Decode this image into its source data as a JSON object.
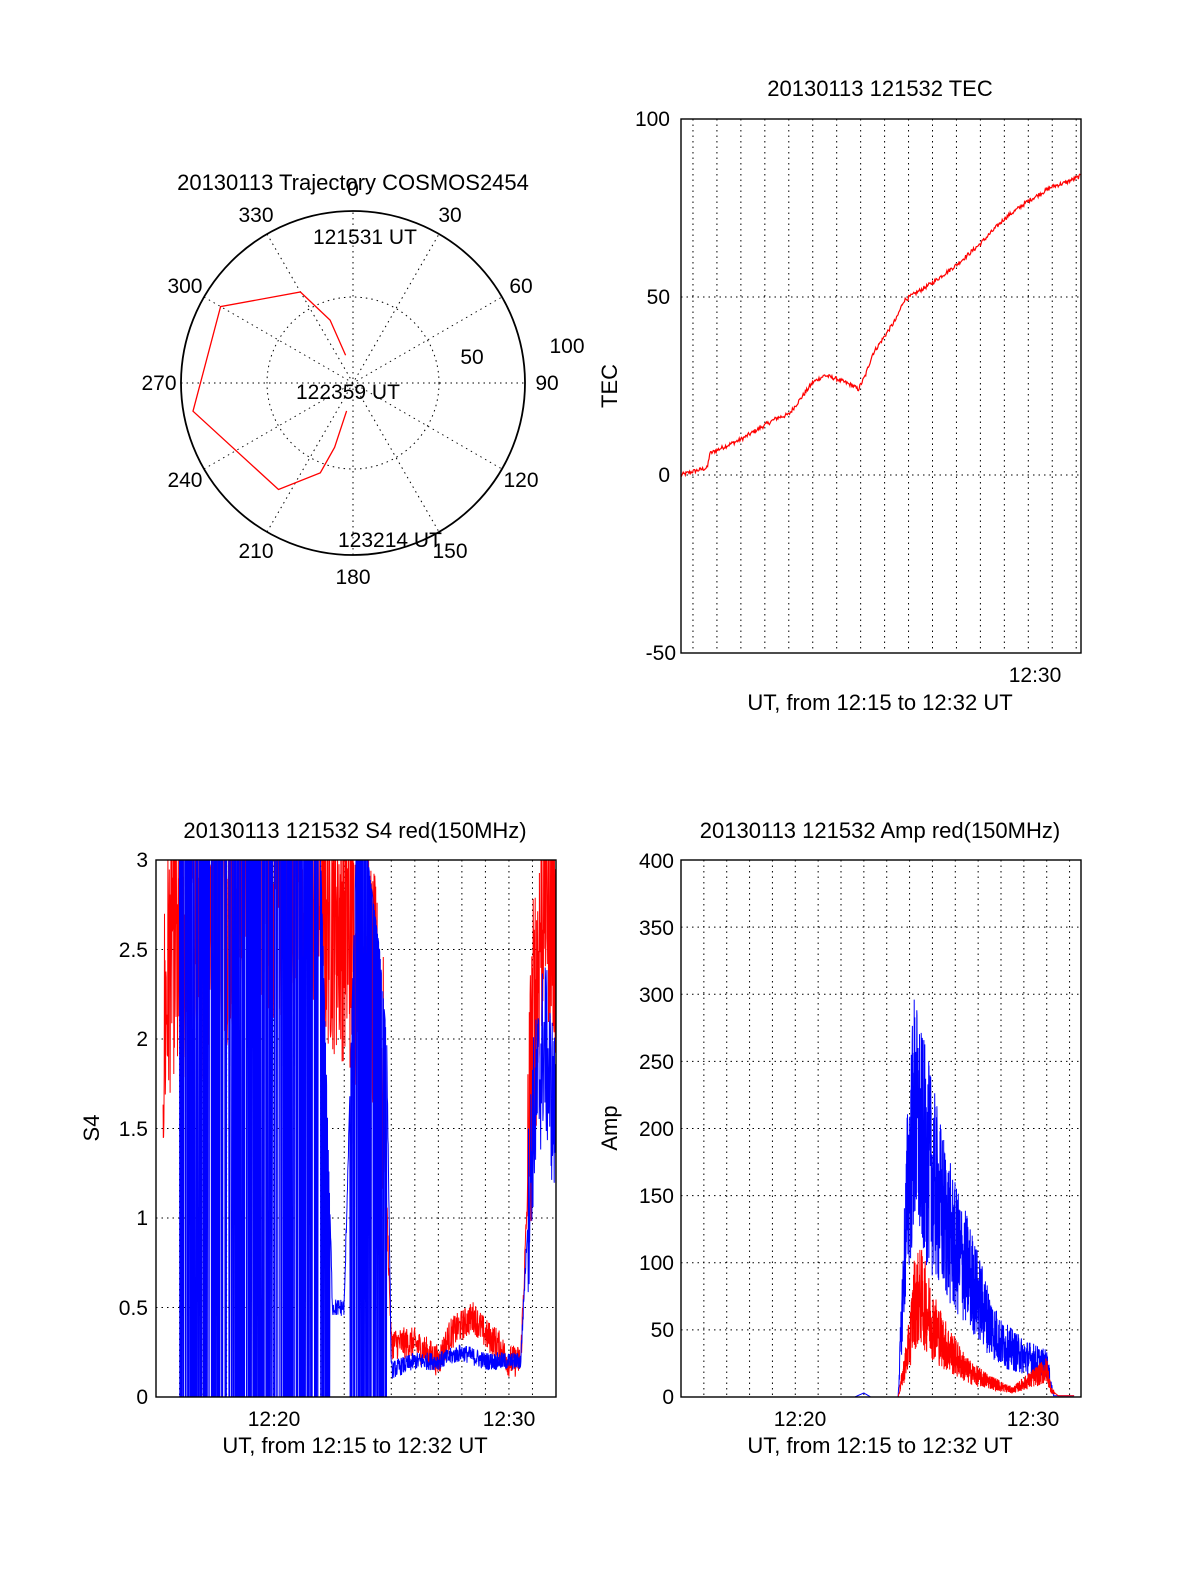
{
  "chart_data": [
    {
      "type": "polar",
      "title": "20130113 Trajectory COSMOS2454",
      "azimuth_labels": [
        "0",
        "30",
        "60",
        "90",
        "120",
        "150",
        "180",
        "210",
        "240",
        "270",
        "300",
        "330"
      ],
      "radial_labels": [
        "50",
        "100"
      ],
      "series": [
        {
          "color": "#ff0000",
          "points_az_el": [
            [
              345,
              75
            ],
            [
              340,
              55
            ],
            [
              330,
              35
            ],
            [
              300,
              10
            ],
            [
              260,
              5
            ],
            [
              215,
              22
            ],
            [
              200,
              40
            ],
            [
              196,
              55
            ],
            [
              193,
              75
            ]
          ]
        }
      ],
      "annotations": [
        "121531 UT",
        "122359 UT",
        "123214 UT"
      ],
      "grid": true
    },
    {
      "type": "line",
      "title": "20130113 121532 TEC",
      "xlabel": "UT, from 12:15 to 12:32 UT",
      "ylabel": "TEC",
      "x_ticks": [
        "12:30"
      ],
      "y_ticks": [
        "100",
        "50",
        "0",
        "-50"
      ],
      "xlim_minutes": [
        15.5,
        32.2
      ],
      "ylim": [
        -50,
        100
      ],
      "grid": true,
      "series": [
        {
          "color": "#ff0000",
          "x_minutes": [
            15.5,
            16.0,
            16.6,
            16.7,
            17.0,
            18.0,
            19.0,
            19.5,
            20.0,
            21.0,
            21.5,
            22.0,
            22.7,
            22.9,
            23.2,
            23.5,
            24.0,
            24.5,
            24.8,
            26.0,
            27.0,
            28.0,
            29.0,
            30.0,
            30.5,
            31.0,
            31.5,
            32.2
          ],
          "values": [
            0,
            1,
            2,
            6,
            7,
            10,
            14,
            16,
            17,
            26,
            28,
            27,
            25,
            24,
            28,
            34,
            39,
            44,
            49,
            54,
            59,
            65,
            72,
            77,
            79,
            81,
            82,
            84
          ]
        }
      ]
    },
    {
      "type": "line",
      "title": "20130113 121532 S4 red(150MHz)",
      "xlabel": "UT, from 12:15 to 12:32 UT",
      "ylabel": "S4",
      "x_ticks": [
        "12:20",
        "12:30"
      ],
      "y_ticks": [
        "0",
        "0.5",
        "1",
        "1.5",
        "2",
        "2.5",
        "3"
      ],
      "xlim_minutes": [
        15.0,
        32.0
      ],
      "ylim": [
        0,
        3
      ],
      "grid": true,
      "series": [
        {
          "color": "#ff0000",
          "x_minutes": [
            15.3,
            15.7,
            16.0,
            16.5,
            17.0,
            17.5,
            18.0,
            19.0,
            20.0,
            21.0,
            22.0,
            23.0,
            24.0,
            24.5,
            24.7,
            25.0,
            26.0,
            27.0,
            27.5,
            28.0,
            28.5,
            29.0,
            29.5,
            30.0,
            30.5,
            31.0,
            31.5,
            32.0
          ],
          "values": [
            1.8,
            2.5,
            2.1,
            2.7,
            2.4,
            2.8,
            2.6,
            2.9,
            2.7,
            2.8,
            2.6,
            2.5,
            2.2,
            1.8,
            1.5,
            0.3,
            0.3,
            0.2,
            0.35,
            0.4,
            0.45,
            0.35,
            0.3,
            0.2,
            0.2,
            1.8,
            2.8,
            2.5
          ]
        },
        {
          "color": "#0000ff",
          "x_minutes": [
            16.0,
            17.0,
            18.0,
            19.0,
            20.0,
            21.0,
            22.0,
            22.5,
            23.0,
            23.5,
            24.0,
            24.5,
            24.8,
            25.0,
            26.0,
            27.0,
            28.0,
            29.0,
            30.0,
            30.5,
            31.0,
            31.5,
            32.0
          ],
          "values": [
            3,
            3,
            3,
            3,
            3,
            3,
            3,
            0.5,
            0.5,
            3,
            3,
            2.5,
            2.0,
            0.15,
            0.2,
            0.2,
            0.25,
            0.2,
            0.2,
            0.2,
            1.5,
            2.0,
            1.5
          ]
        }
      ]
    },
    {
      "type": "line",
      "title": "20130113 121532 Amp red(150MHz)",
      "xlabel": "UT, from 12:15 to 12:32 UT",
      "ylabel": "Amp",
      "x_ticks": [
        "12:20",
        "12:30"
      ],
      "y_ticks": [
        "0",
        "50",
        "100",
        "150",
        "200",
        "250",
        "300",
        "350",
        "400"
      ],
      "xlim_minutes": [
        15.0,
        32.5
      ],
      "ylim": [
        0,
        400
      ],
      "grid": true,
      "series": [
        {
          "color": "#ff0000",
          "x_minutes": [
            15.5,
            20.0,
            24.5,
            25.0,
            25.2,
            25.5,
            26.0,
            26.5,
            27.0,
            27.5,
            28.0,
            29.0,
            29.5,
            30.0,
            30.5,
            31.0,
            31.2,
            31.5,
            32.2
          ],
          "values": [
            0,
            0,
            0,
            40,
            70,
            75,
            55,
            40,
            30,
            20,
            15,
            8,
            5,
            10,
            15,
            20,
            5,
            1,
            1
          ]
        },
        {
          "color": "#0000ff",
          "x_minutes": [
            15.5,
            22.6,
            23.0,
            23.3,
            24.5,
            24.9,
            25.2,
            25.5,
            25.8,
            26.2,
            26.6,
            27.0,
            27.5,
            28.0,
            28.5,
            29.0,
            29.5,
            30.0,
            30.4,
            30.8,
            31.0,
            31.3,
            32.2
          ],
          "values": [
            0,
            0,
            3,
            0,
            0,
            150,
            210,
            190,
            175,
            150,
            130,
            110,
            95,
            75,
            55,
            40,
            35,
            30,
            28,
            25,
            25,
            1,
            1
          ]
        }
      ]
    }
  ]
}
